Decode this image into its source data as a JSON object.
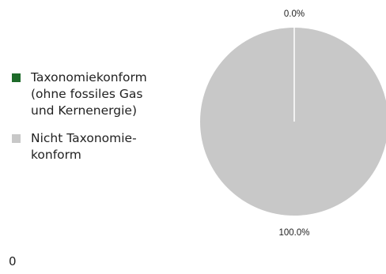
{
  "chart_data": {
    "type": "pie",
    "title": "",
    "slices": [
      {
        "label": "Taxonomiekonform\n(ohne fossiles Gas\nund Kernenergie)",
        "value": 0.0,
        "value_label": "0.0%",
        "color": "#1e6b2a"
      },
      {
        "label": "Nicht Taxonomie-\nkonform",
        "value": 100.0,
        "value_label": "100.0%",
        "color": "#c8c8c8"
      }
    ],
    "legend_placement": "left",
    "start_angle": "top",
    "direction": "clockwise"
  },
  "footer": {
    "mark": "0"
  }
}
